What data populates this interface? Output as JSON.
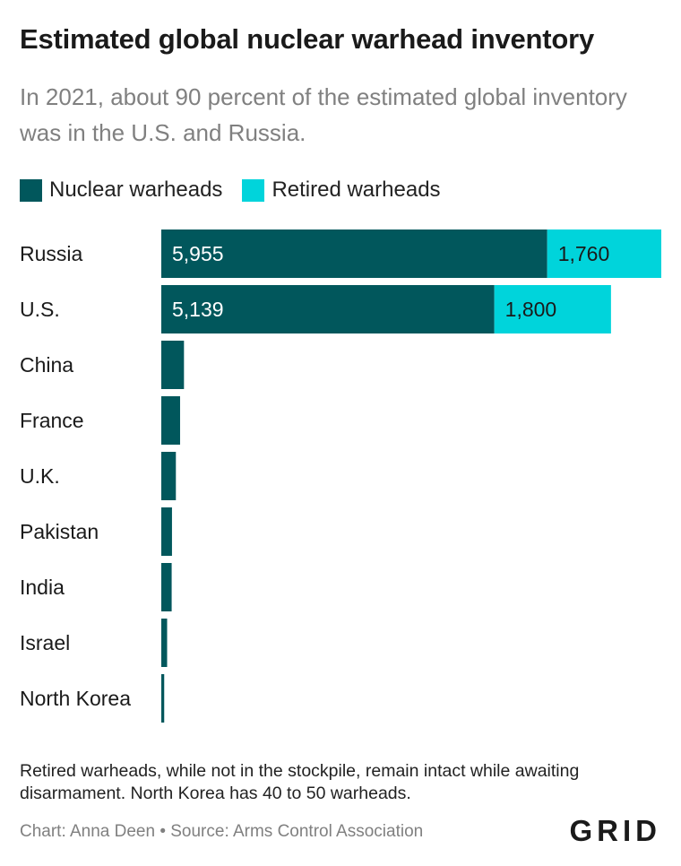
{
  "header": {
    "title": "Estimated global nuclear warhead inventory",
    "subtitle": "In 2021, about 90 percent of the estimated global inventory was in the U.S. and Russia."
  },
  "colors": {
    "nuclear": "#01575c",
    "retired": "#00d4db"
  },
  "chart_data": {
    "type": "bar",
    "orientation": "horizontal",
    "stacked": true,
    "categories": [
      "Russia",
      "U.S.",
      "China",
      "France",
      "U.K.",
      "Pakistan",
      "India",
      "Israel",
      "North Korea"
    ],
    "series": [
      {
        "name": "Nuclear warheads",
        "values": [
          5955,
          5139,
          350,
          290,
          225,
          165,
          160,
          90,
          45
        ],
        "labels": [
          "5,955",
          "5,139",
          "",
          "",
          "",
          "",
          "",
          "",
          ""
        ]
      },
      {
        "name": "Retired warheads",
        "values": [
          1760,
          1800,
          0,
          0,
          0,
          0,
          0,
          0,
          0
        ],
        "labels": [
          "1,760",
          "1,800",
          "",
          "",
          "",
          "",
          "",
          "",
          ""
        ]
      }
    ],
    "xlim": [
      0,
      7715
    ],
    "legend": "top-left",
    "grid": false
  },
  "footer": {
    "note": "Retired warheads, while not in the stockpile, remain intact while awaiting disarmament. North Korea has 40 to 50 warheads.",
    "source": "Chart: Anna Deen • Source: Arms Control Association",
    "logo": "GRID"
  }
}
